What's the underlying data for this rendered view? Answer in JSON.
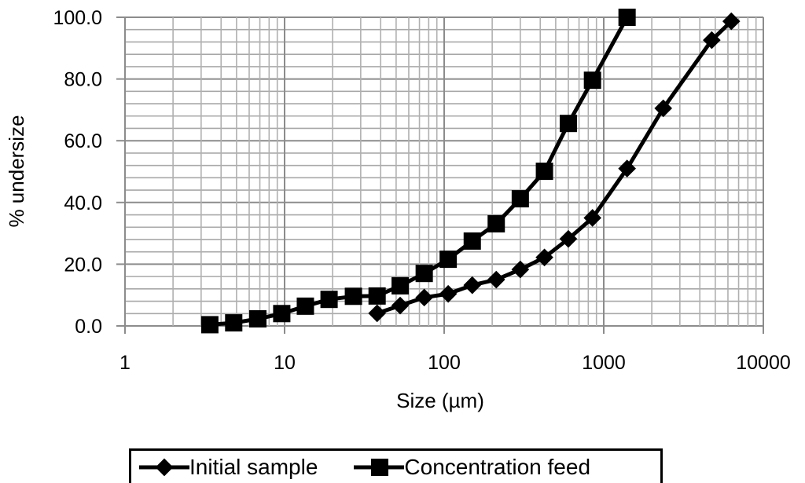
{
  "chart_data": {
    "type": "line",
    "title": "",
    "xlabel": "Size (µm)",
    "ylabel": "% undersize",
    "xscale": "log",
    "xlim": [
      1,
      10000
    ],
    "ylim": [
      0,
      100
    ],
    "x_ticks": [
      "1",
      "10",
      "100",
      "1000",
      "10000"
    ],
    "x_tick_values": [
      1,
      10,
      100,
      1000,
      10000
    ],
    "y_ticks": [
      "0.0",
      "20.0",
      "40.0",
      "60.0",
      "80.0",
      "100.0"
    ],
    "y_tick_values": [
      0,
      20,
      40,
      60,
      80,
      100
    ],
    "y_minor_step": 4,
    "grid": true,
    "legend_position": "bottom",
    "series": [
      {
        "name": "Initial sample",
        "marker": "diamond",
        "color": "#000000",
        "x": [
          38,
          53,
          75,
          106,
          150,
          212,
          300,
          425,
          600,
          850,
          1400,
          2360,
          4750,
          6300
        ],
        "y": [
          4.1,
          6.6,
          9.2,
          10.4,
          13.2,
          15.0,
          18.3,
          22.2,
          28.2,
          35.0,
          51.0,
          70.5,
          92.6,
          98.7
        ]
      },
      {
        "name": "Concentration feed",
        "marker": "square",
        "color": "#000000",
        "x": [
          3.4,
          4.8,
          6.8,
          9.6,
          13.5,
          19,
          27,
          38,
          53,
          75,
          106,
          150,
          212,
          300,
          425,
          600,
          850,
          1400
        ],
        "y": [
          0.4,
          1.0,
          2.3,
          4.0,
          6.4,
          8.6,
          9.6,
          9.7,
          13.0,
          17.0,
          21.6,
          27.5,
          33.1,
          41.2,
          50.1,
          65.6,
          79.6,
          100.0
        ]
      }
    ]
  }
}
